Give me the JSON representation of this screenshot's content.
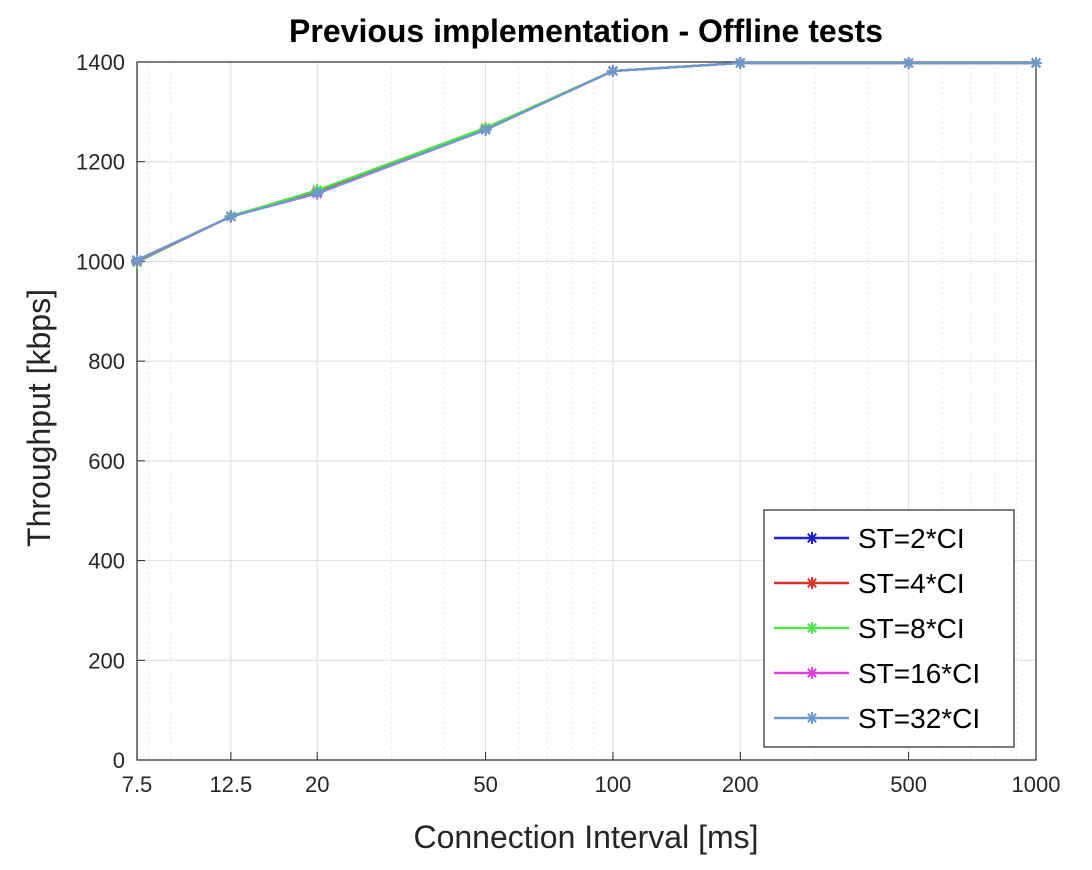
{
  "chart_data": {
    "type": "line",
    "title": "Previous implementation - Offline tests",
    "xlabel": "Connection Interval [ms]",
    "ylabel": "Throughput [kbps]",
    "xscale": "log",
    "xlim": [
      7.5,
      1000
    ],
    "ylim": [
      0,
      1400
    ],
    "x": [
      7.5,
      12.5,
      20,
      50,
      100,
      200,
      500,
      1000
    ],
    "xticks": [
      "7.5",
      "12.5",
      "20",
      "50",
      "100",
      "200",
      "500",
      "1000"
    ],
    "yticks": [
      "0",
      "200",
      "400",
      "600",
      "800",
      "1000",
      "1200",
      "1400"
    ],
    "grid": true,
    "legend_position": "bottom-right",
    "series": [
      {
        "name": "ST=2*CI",
        "color": "#1f1fd0",
        "values": [
          1002,
          1090,
          1138,
          1265,
          1382,
          1398,
          1398,
          1398
        ]
      },
      {
        "name": "ST=4*CI",
        "color": "#d9342b",
        "values": [
          1000,
          1090,
          1139,
          1266,
          1382,
          1398,
          1398,
          1398
        ]
      },
      {
        "name": "ST=8*CI",
        "color": "#4fe34f",
        "values": [
          998,
          1091,
          1143,
          1268,
          1382,
          1398,
          1398,
          1398
        ]
      },
      {
        "name": "ST=16*CI",
        "color": "#e23fe2",
        "values": [
          1001,
          1090,
          1136,
          1264,
          1382,
          1398,
          1398,
          1398
        ]
      },
      {
        "name": "ST=32*CI",
        "color": "#6a9bc9",
        "values": [
          1003,
          1090,
          1137,
          1264,
          1382,
          1398,
          1398,
          1398
        ]
      }
    ]
  }
}
